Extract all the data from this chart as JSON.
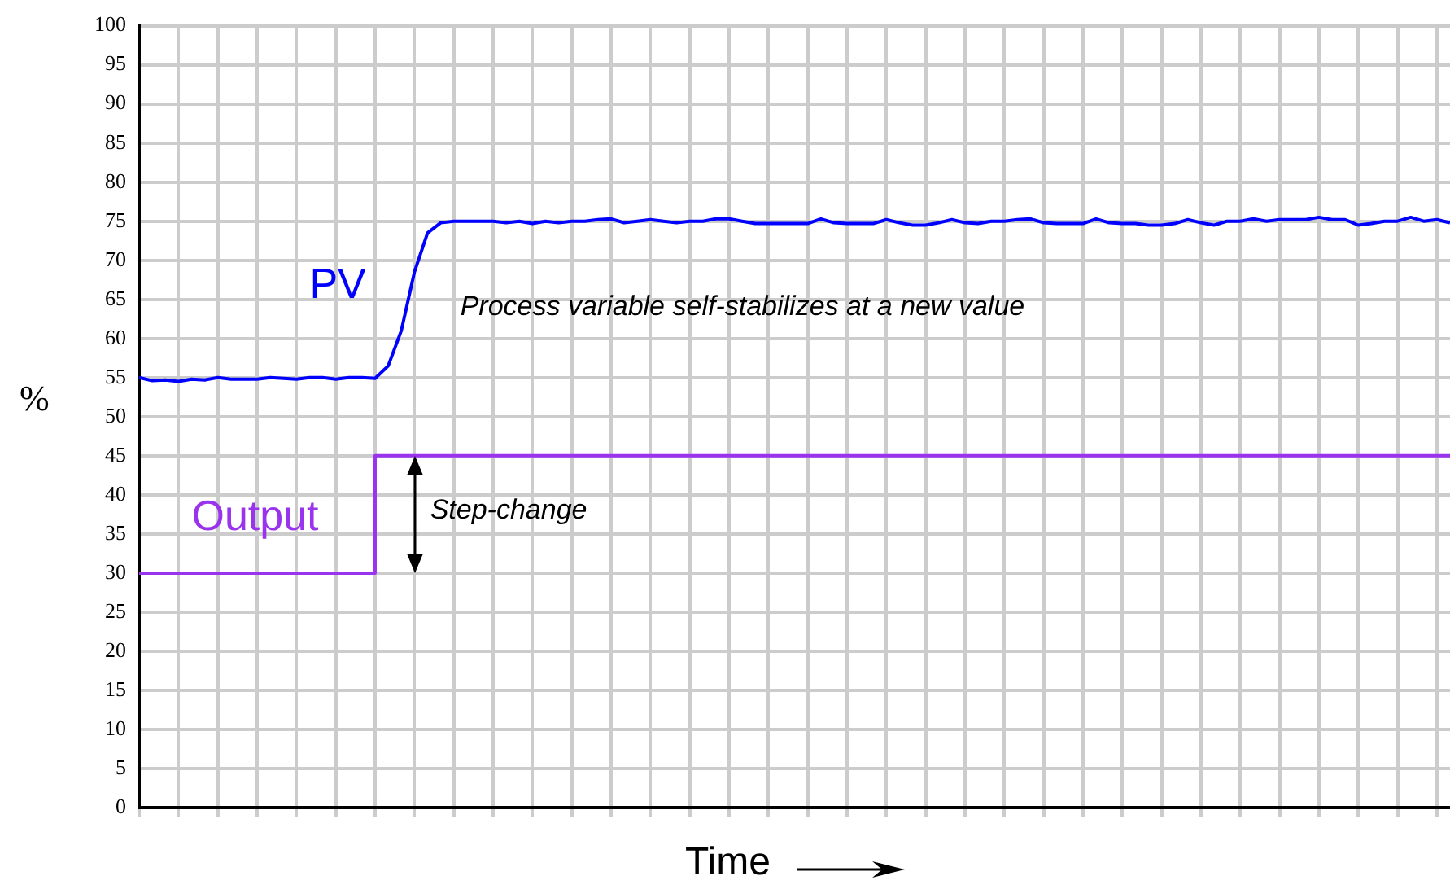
{
  "chart_data": {
    "type": "line",
    "xlabel": "Time",
    "ylabel": "%",
    "categories": [
      null,
      null,
      null,
      null,
      null,
      null,
      null,
      null,
      null,
      null,
      null,
      null,
      null,
      null,
      null,
      null,
      null,
      null,
      null,
      null,
      null,
      null,
      null,
      null,
      null,
      null,
      null,
      null,
      null,
      null,
      null,
      null,
      null,
      null,
      null,
      null,
      null,
      null,
      null,
      null,
      null,
      null,
      null,
      null,
      null,
      null,
      null,
      null,
      null,
      null,
      null,
      null,
      null,
      null,
      null,
      null,
      null,
      null,
      null,
      null,
      null,
      null,
      null,
      null,
      null,
      null,
      null,
      null,
      null,
      null,
      null,
      null,
      null,
      null,
      null,
      null,
      null,
      null,
      null,
      null,
      null,
      null,
      null,
      null,
      null,
      null,
      null,
      null,
      null,
      null,
      null,
      null,
      null,
      null,
      null,
      null,
      null,
      null,
      null,
      null,
      null
    ],
    "series": [
      {
        "name": "PV",
        "color": "#0000ff",
        "values": [
          55,
          54.6,
          54.7,
          54.5,
          54.8,
          54.7,
          55,
          54.8,
          54.8,
          54.8,
          55,
          54.9,
          54.8,
          55,
          55,
          54.8,
          55,
          55,
          54.9,
          56.5,
          61,
          68.5,
          73.5,
          74.8,
          75,
          75,
          75,
          75,
          74.8,
          75,
          74.7,
          75,
          74.8,
          75,
          75,
          75.2,
          75.3,
          74.8,
          75,
          75.2,
          75,
          74.8,
          75,
          75,
          75.3,
          75.3,
          75,
          74.7,
          74.7,
          74.7,
          74.7,
          74.7,
          75.3,
          74.8,
          74.7,
          74.7,
          74.7,
          75.2,
          74.8,
          74.5,
          74.5,
          74.8,
          75.2,
          74.8,
          74.7,
          75,
          75,
          75.2,
          75.3,
          74.8,
          74.7,
          74.7,
          74.7,
          75.3,
          74.8,
          74.7,
          74.7,
          74.5,
          74.5,
          74.7,
          75.2,
          74.8,
          74.5,
          75,
          75,
          75.3,
          75,
          75.2,
          75.2,
          75.2,
          75.5,
          75.2,
          75.2,
          74.5,
          74.7,
          75,
          75,
          75.5,
          75,
          75.2,
          74.8
        ]
      },
      {
        "name": "Output",
        "color": "#9933ee",
        "type": "step",
        "values": [
          30,
          30,
          30,
          30,
          30,
          30,
          30,
          30,
          30,
          30,
          30,
          30,
          30,
          30,
          30,
          30,
          30,
          30,
          45,
          45,
          45,
          45,
          45,
          45,
          45,
          45,
          45,
          45,
          45,
          45,
          45,
          45,
          45,
          45,
          45,
          45,
          45,
          45,
          45,
          45,
          45,
          45,
          45,
          45,
          45,
          45,
          45,
          45,
          45,
          45,
          45,
          45,
          45,
          45,
          45,
          45,
          45,
          45,
          45,
          45,
          45,
          45,
          45,
          45,
          45,
          45,
          45,
          45,
          45,
          45,
          45,
          45,
          45,
          45,
          45,
          45,
          45,
          45,
          45,
          45,
          45,
          45,
          45,
          45,
          45,
          45,
          45,
          45,
          45,
          45,
          45,
          45,
          45,
          45,
          45,
          45,
          45,
          45,
          45,
          45,
          45
        ]
      }
    ],
    "ylim": [
      0,
      100
    ],
    "yticks": [
      0,
      5,
      10,
      15,
      20,
      25,
      30,
      35,
      40,
      45,
      50,
      55,
      60,
      65,
      70,
      75,
      80,
      85,
      90,
      95,
      100
    ],
    "grid": true,
    "legend": false,
    "tick_labels": "y",
    "marker": "none",
    "line_style": "solid",
    "annotations": [
      "Process variable self-stabilizes at a new value",
      "Step-change"
    ]
  }
}
